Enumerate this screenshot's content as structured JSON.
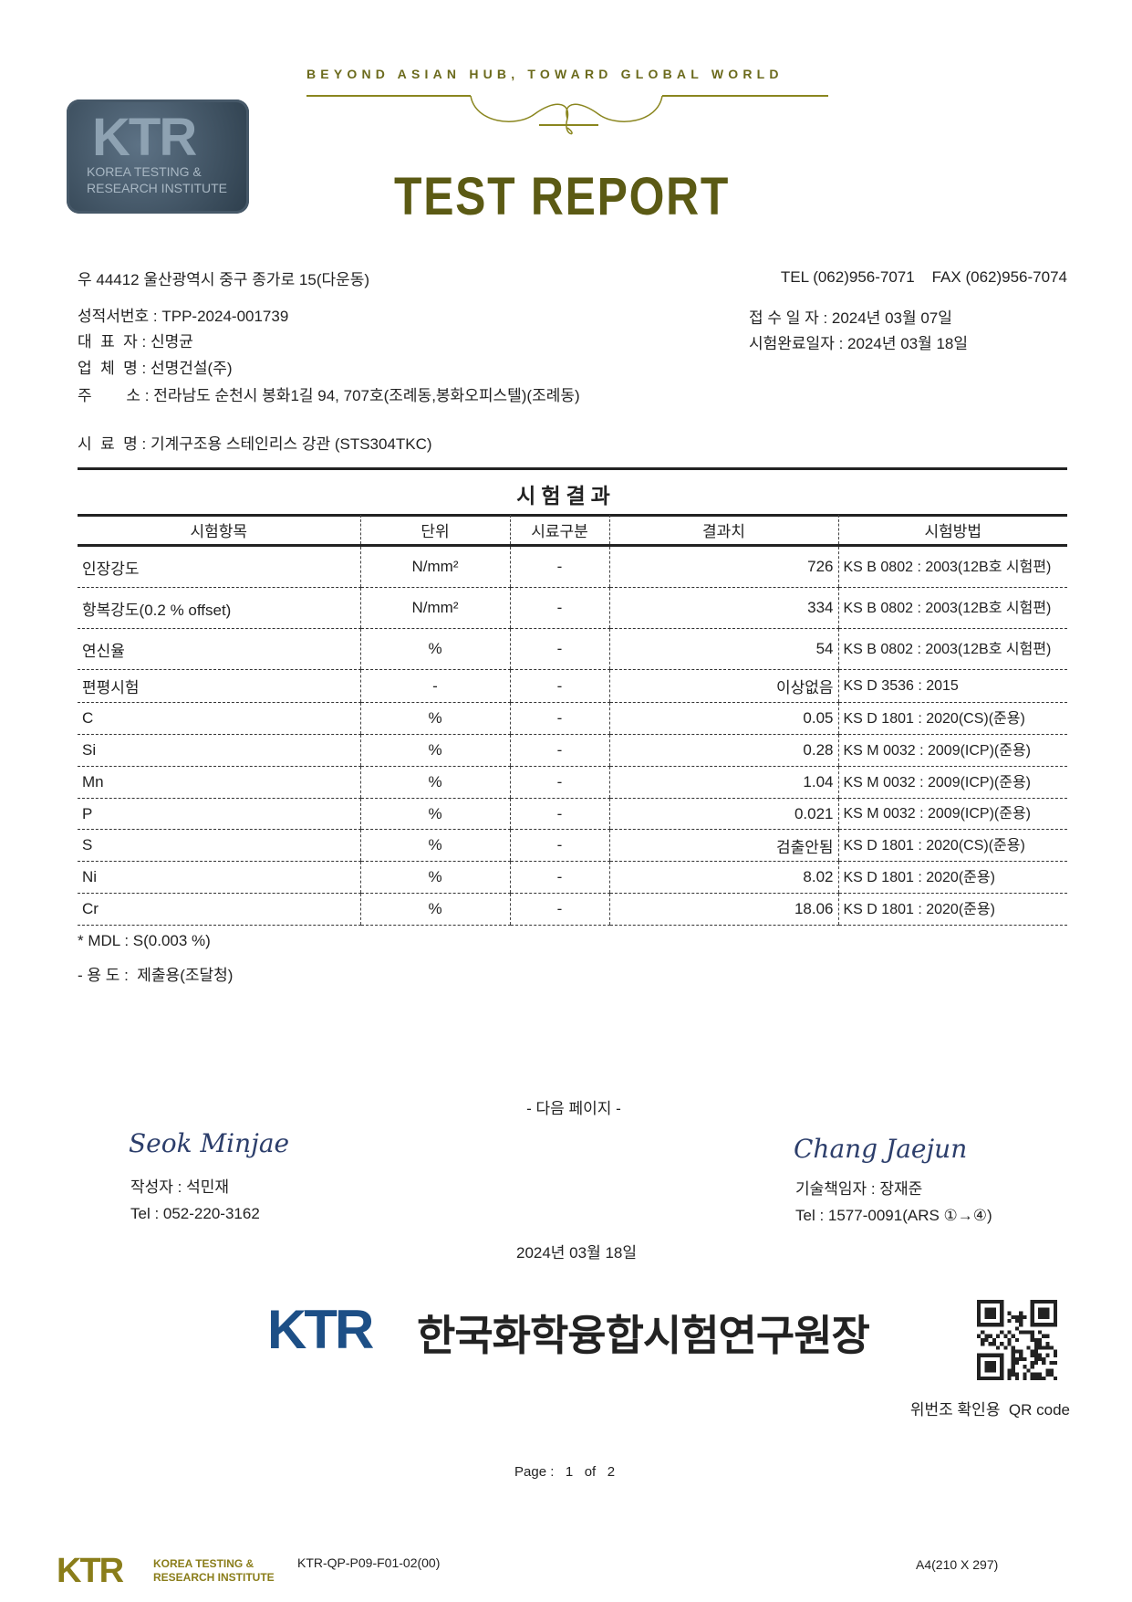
{
  "header": {
    "slogan": "BEYOND ASIAN HUB, TOWARD GLOBAL WORLD",
    "logo_text": "KTR",
    "logo_subtext_1": "KOREA TESTING &",
    "logo_subtext_2": "RESEARCH INSTITUTE",
    "title": "TEST REPORT"
  },
  "contact": {
    "address": "우 44412 울산광역시 중구 종가로 15(다운동)",
    "tel_fax": "TEL (062)956-7071    FAX (062)956-7074"
  },
  "info": {
    "report_no": "성적서번호 : TPP-2024-001739",
    "representative": "대  표  자 : 신명균",
    "company": "업  체  명 : 선명건설(주)",
    "address": "주        소 : 전라남도 순천시 봉화1길 94, 707호(조례동,봉화오피스텔)(조례동)",
    "sample": "시  료  명 : 기계구조용 스테인리스 강관 (STS304TKC)",
    "received": "접 수 일 자 : 2024년 03월 07일",
    "completed": "시험완료일자 : 2024년 03월 18일"
  },
  "results": {
    "heading": "시험결과",
    "columns": [
      "시험항목",
      "단위",
      "시료구분",
      "결과치",
      "시험방법"
    ],
    "rows": [
      [
        "인장강도",
        "N/mm²",
        "-",
        "726",
        "KS B 0802 : 2003(12B호 시험편)"
      ],
      [
        "항복강도(0.2 % offset)",
        "N/mm²",
        "-",
        "334",
        "KS B 0802 : 2003(12B호 시험편)"
      ],
      [
        "연신율",
        "%",
        "-",
        "54",
        "KS B 0802 : 2003(12B호 시험편)"
      ],
      [
        "편평시험",
        "-",
        "-",
        "이상없음",
        "KS D 3536 : 2015"
      ],
      [
        "C",
        "%",
        "-",
        "0.05",
        "KS D 1801 : 2020(CS)(준용)"
      ],
      [
        "Si",
        "%",
        "-",
        "0.28",
        "KS M 0032 : 2009(ICP)(준용)"
      ],
      [
        "Mn",
        "%",
        "-",
        "1.04",
        "KS M 0032 : 2009(ICP)(준용)"
      ],
      [
        "P",
        "%",
        "-",
        "0.021",
        "KS M 0032 : 2009(ICP)(준용)"
      ],
      [
        "S",
        "%",
        "-",
        "검출안됨",
        "KS D 1801 : 2020(CS)(준용)"
      ],
      [
        "Ni",
        "%",
        "-",
        "8.02",
        "KS D 1801 : 2020(준용)"
      ],
      [
        "Cr",
        "%",
        "-",
        "18.06",
        "KS D 1801 : 2020(준용)"
      ]
    ],
    "note_mdl": "* MDL : S(0.003 %)",
    "note_usage": "- 용 도 :  제출용(조달청)"
  },
  "footer": {
    "next_page": "- 다음 페이지 -",
    "author_signature": "Seok Minjae",
    "author": "작성자 : 석민재",
    "author_tel": "Tel : 052-220-3162",
    "manager_signature": "Chang Jaejun",
    "manager": "기술책임자 : 장재준",
    "manager_tel": "Tel : 1577-0091(ARS ①→④)",
    "date": "2024년 03월 18일",
    "org_logo": "KTR",
    "org_name": "한국화학융합시험연구원장",
    "qr_caption": "위번조 확인용  QR code",
    "page": "Page :   1   of   2",
    "form_logo": "KTR",
    "form_logo_sub_1": "KOREA TESTING &",
    "form_logo_sub_2": "RESEARCH INSTITUTE",
    "form_code": "KTR-QP-P09-F01-02(00)",
    "paper_size": "A4(210 X 297)"
  },
  "colors": {
    "gold": "#6b6a1c",
    "brand_blue": "#1d4f86",
    "signature_blue": "#2c3e6b"
  }
}
